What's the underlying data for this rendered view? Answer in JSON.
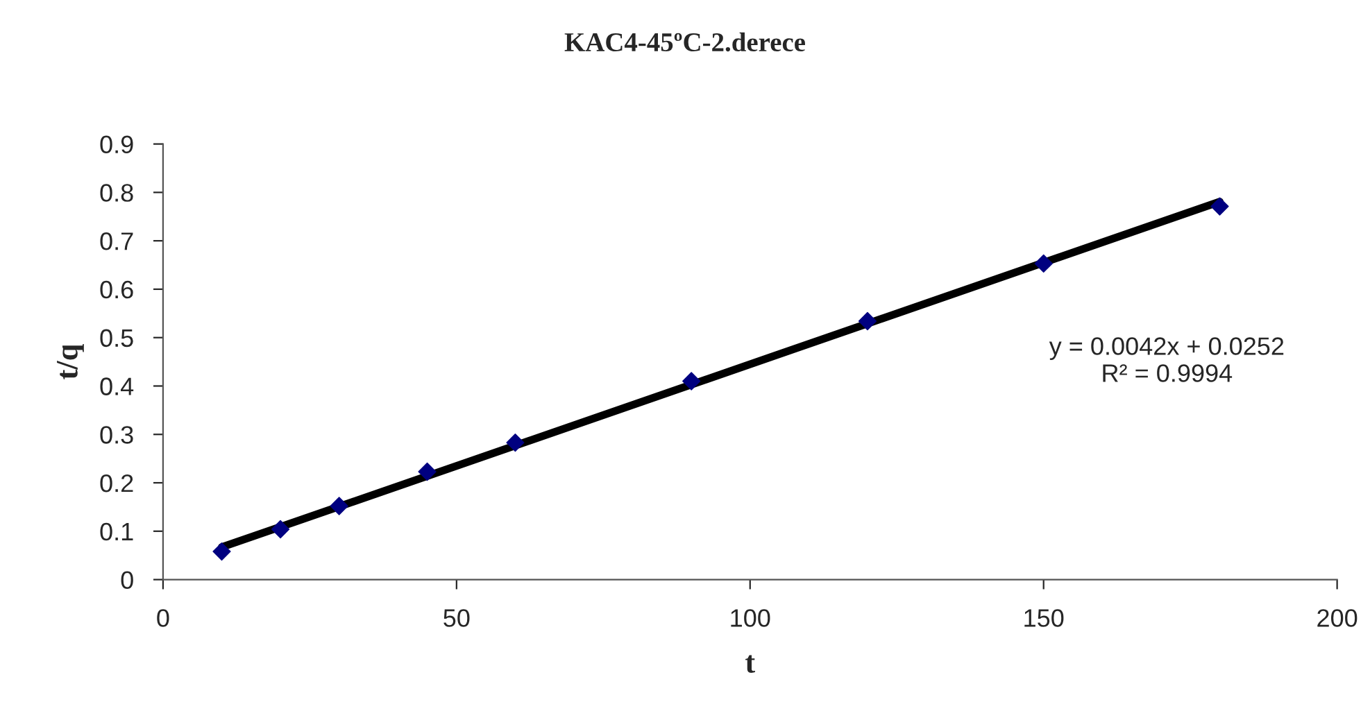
{
  "chart_data": {
    "type": "scatter",
    "title": "KAC4-45ºC-2.derece",
    "xlabel": "t",
    "ylabel": "t/q",
    "x": [
      10,
      20,
      30,
      45,
      60,
      90,
      120,
      150,
      180
    ],
    "series": [
      {
        "color": "#000080",
        "marker": "diamond",
        "values": [
          0.058,
          0.104,
          0.152,
          0.223,
          0.283,
          0.41,
          0.534,
          0.653,
          0.771
        ]
      },
      {
        "type": "line",
        "color": "#000000",
        "marker": "none",
        "line_style": "solid",
        "x": [
          10,
          180
        ],
        "values": [
          0.067,
          0.781
        ]
      }
    ],
    "annotations": [
      "y = 0.0042x + 0.0252\nR² = 0.9994"
    ],
    "xlim": [
      0,
      200
    ],
    "xticks": [
      0,
      50,
      100,
      150,
      200
    ],
    "ylim": [
      0,
      0.9
    ],
    "yticks": [
      0,
      0.1,
      0.2,
      0.3,
      0.4,
      0.5,
      0.6,
      0.7,
      0.8,
      0.9
    ],
    "grid": false,
    "legend": false
  }
}
